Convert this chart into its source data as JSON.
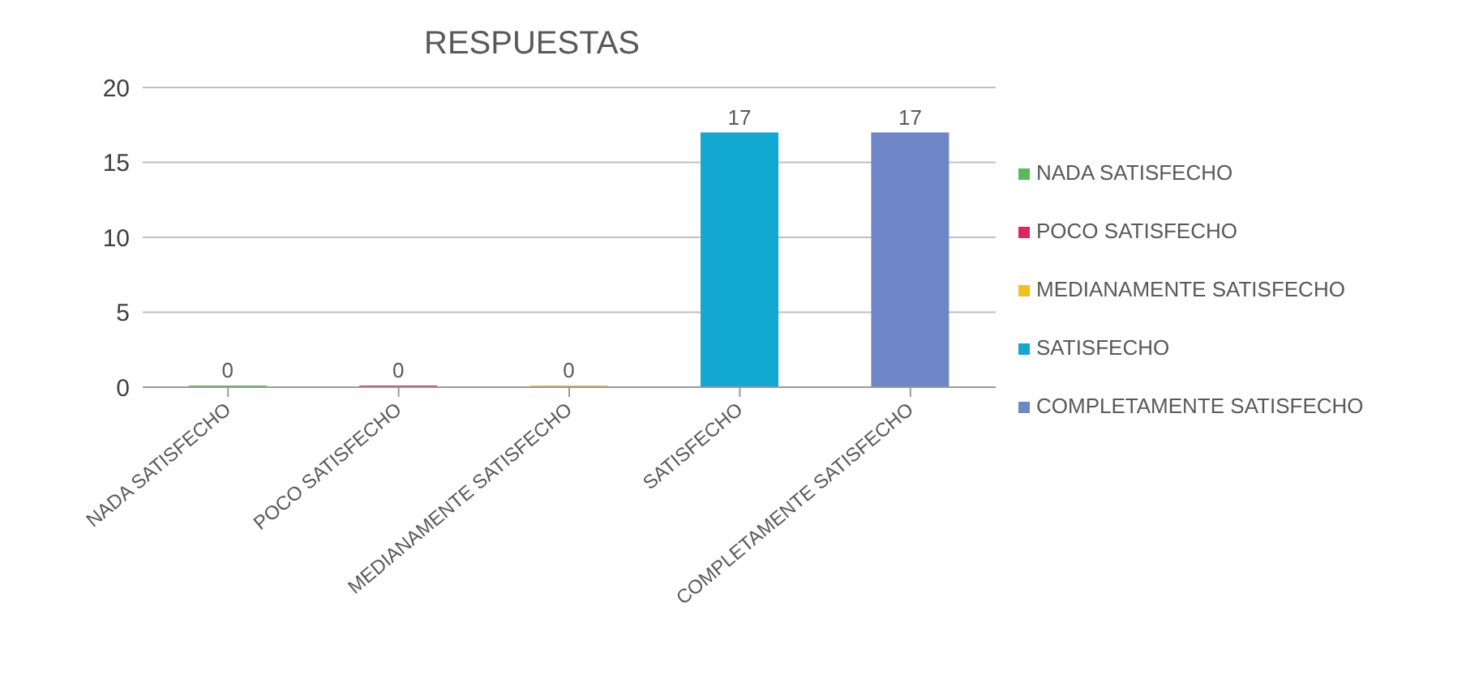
{
  "chart_data": {
    "type": "bar",
    "title": "RESPUESTAS",
    "categories": [
      "NADA SATISFECHO",
      "POCO SATISFECHO",
      "MEDIANAMENTE SATISFECHO",
      "SATISFECHO",
      "COMPLETAMENTE SATISFECHO"
    ],
    "series": [
      {
        "name": "NADA SATISFECHO",
        "color": "#5cb85c",
        "values": [
          0,
          null,
          null,
          null,
          null
        ]
      },
      {
        "name": "POCO SATISFECHO",
        "color": "#d9275f",
        "values": [
          null,
          0,
          null,
          null,
          null
        ]
      },
      {
        "name": "MEDIANAMENTE SATISFECHO",
        "color": "#f0c020",
        "values": [
          null,
          null,
          0,
          null,
          null
        ]
      },
      {
        "name": "SATISFECHO",
        "color": "#12a8d0",
        "values": [
          null,
          null,
          null,
          17,
          null
        ]
      },
      {
        "name": "COMPLETAMENTE SATISFECHO",
        "color": "#6f86c6",
        "values": [
          null,
          null,
          null,
          null,
          17
        ]
      }
    ],
    "stacked": true,
    "ylim": [
      0,
      20
    ],
    "yticks": [
      0,
      5,
      10,
      15,
      20
    ],
    "grid": "y",
    "legend": "right",
    "data_labels": true
  }
}
